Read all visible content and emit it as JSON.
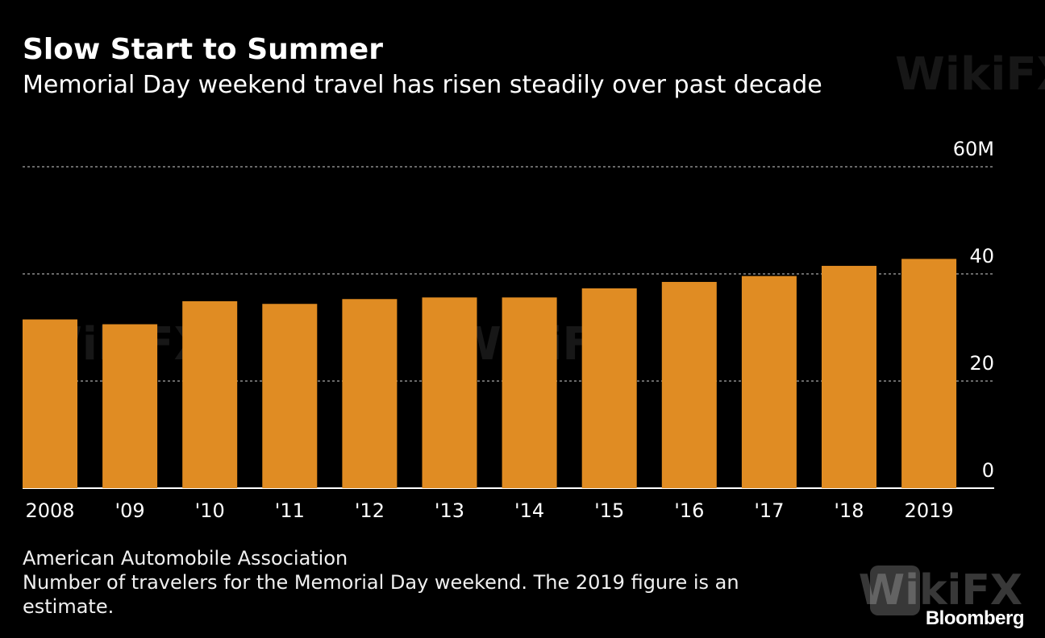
{
  "title": "Slow Start to Summer",
  "subtitle": "Memorial Day weekend travel has risen steadily over past decade",
  "source": "American Automobile Association",
  "note": "Number of travelers for the Memorial Day weekend. The 2019 figure is an estimate.",
  "brand": "Bloomberg",
  "watermark": "WikiFX",
  "colors": {
    "bar": "#E08C23",
    "background": "#000000",
    "grid": "#8c8c8c",
    "text": "#ffffff"
  },
  "chart_data": {
    "type": "bar",
    "categories": [
      "2008",
      "'09",
      "'10",
      "'11",
      "'12",
      "'13",
      "'14",
      "'15",
      "'16",
      "'17",
      "'18",
      "2019"
    ],
    "values": [
      31.5,
      30.6,
      34.9,
      34.4,
      35.3,
      35.6,
      35.6,
      37.3,
      38.5,
      39.6,
      41.5,
      42.8
    ],
    "ylim": [
      0,
      60
    ],
    "yticks": [
      0,
      20,
      40,
      60
    ],
    "ytick_labels": [
      "0",
      "20",
      "40",
      "60M"
    ],
    "grid": true,
    "xlabel": "",
    "ylabel": ""
  }
}
